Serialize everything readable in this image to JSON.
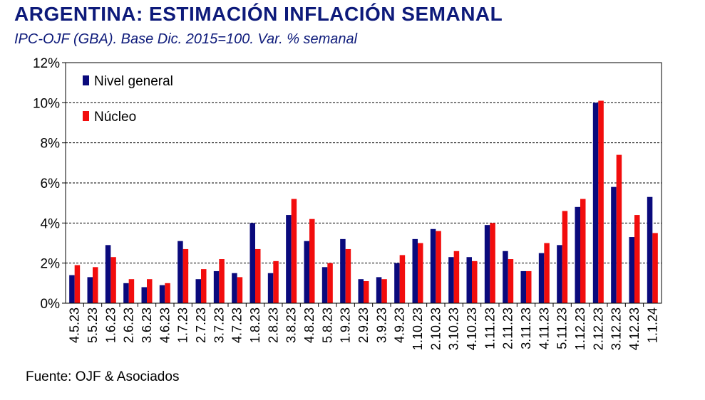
{
  "header": {
    "title": "ARGENTINA: ESTIMACIÓN INFLACIÓN SEMANAL",
    "subtitle": "IPC-OJF (GBA). Base Dic. 2015=100. Var. % semanal"
  },
  "footer": {
    "source": "Fuente: OJF & Asociados"
  },
  "colors": {
    "nivel_general": "#0a0a7c",
    "nucleo": "#f20d0d",
    "title": "#0d1a7a"
  },
  "chart_data": {
    "type": "bar",
    "title": "ARGENTINA: ESTIMACIÓN INFLACIÓN SEMANAL",
    "xlabel": "",
    "ylabel": "",
    "ylim": [
      0,
      12
    ],
    "yticks": [
      0,
      2,
      4,
      6,
      8,
      10,
      12
    ],
    "ytick_labels": [
      "0%",
      "2%",
      "4%",
      "6%",
      "8%",
      "10%",
      "12%"
    ],
    "grid": true,
    "legend_position": "top-left",
    "categories": [
      "4.5.23",
      "5.5.23",
      "1.6.23",
      "2.6.23",
      "3.6.23",
      "4.6.23",
      "1.7.23",
      "2.7.23",
      "3.7.23",
      "4.7.23",
      "1.8.23",
      "2.8.23",
      "3.8.23",
      "4.8.23",
      "5.8.23",
      "1.9.23",
      "2.9.23",
      "3.9.23",
      "4.9.23",
      "1.10.23",
      "2.10.23",
      "3.10.23",
      "4.10.23",
      "1.11.23",
      "2.11.23",
      "3.11.23",
      "4.11.23",
      "5.11.23",
      "1.12.23",
      "2.12.23",
      "3.12.23",
      "4.12.23",
      "1.1.24"
    ],
    "series": [
      {
        "name": "Nivel general",
        "values": [
          1.4,
          1.3,
          2.9,
          1.0,
          0.8,
          0.9,
          3.1,
          1.2,
          1.6,
          1.5,
          4.0,
          1.5,
          4.4,
          3.1,
          1.8,
          3.2,
          1.2,
          1.3,
          2.0,
          3.2,
          3.7,
          2.3,
          2.3,
          3.9,
          2.6,
          1.6,
          2.5,
          2.9,
          4.8,
          10.0,
          5.8,
          3.3,
          5.3
        ]
      },
      {
        "name": "Núcleo",
        "values": [
          1.9,
          1.8,
          2.3,
          1.2,
          1.2,
          1.0,
          2.7,
          1.7,
          2.2,
          1.3,
          2.7,
          2.1,
          5.2,
          4.2,
          2.0,
          2.7,
          1.1,
          1.2,
          2.4,
          3.0,
          3.6,
          2.6,
          2.1,
          4.0,
          2.2,
          1.6,
          3.0,
          4.6,
          5.2,
          10.1,
          7.4,
          4.4,
          3.5
        ]
      }
    ]
  }
}
